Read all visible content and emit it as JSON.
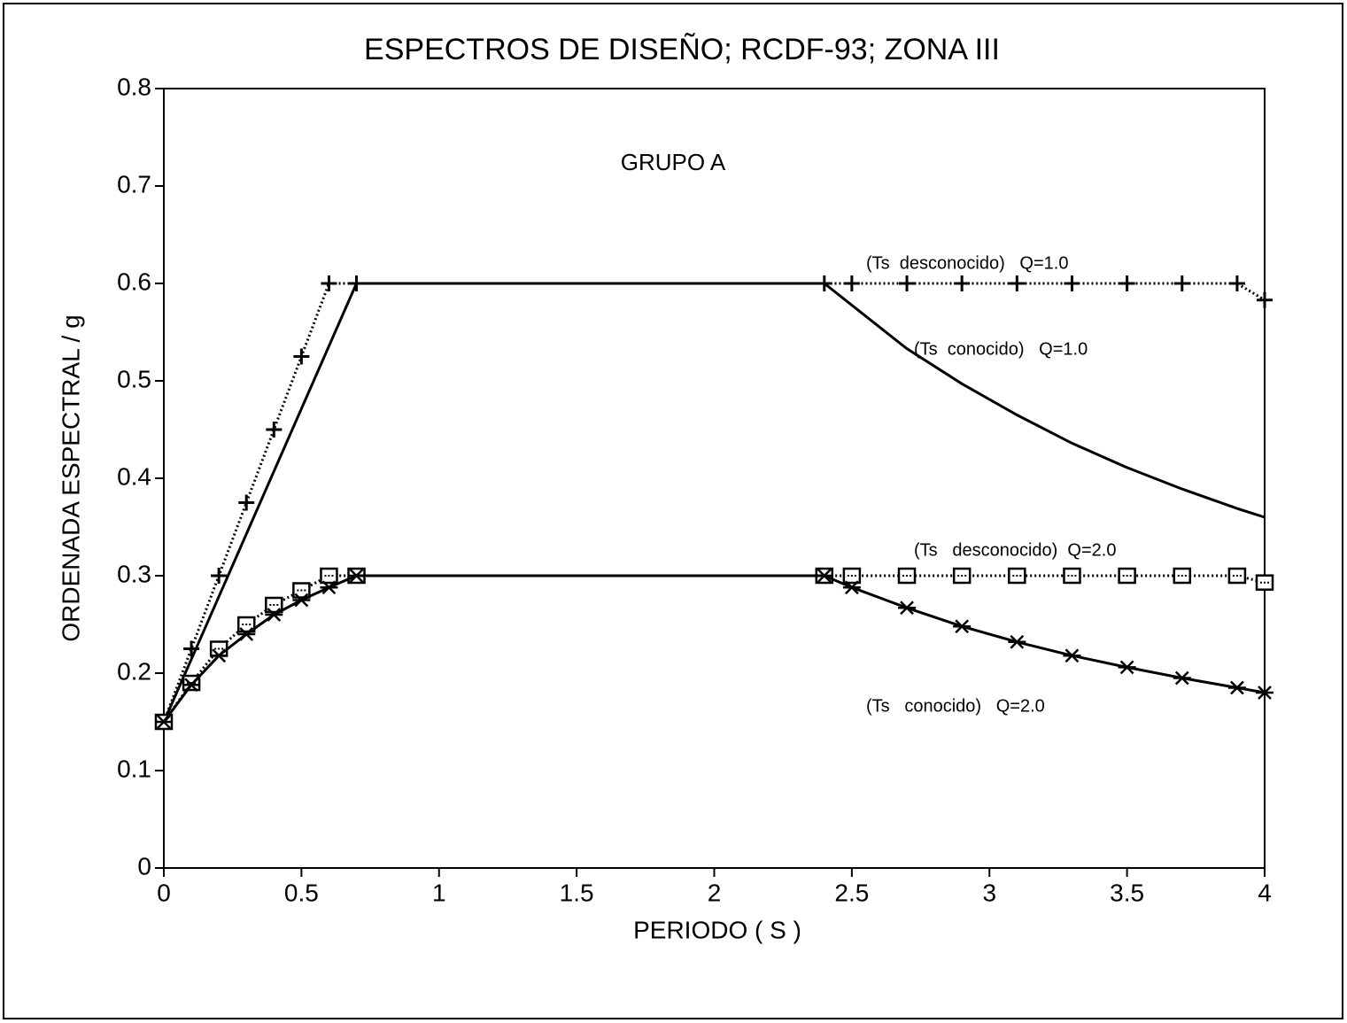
{
  "chart_data": {
    "type": "line",
    "title": "ESPECTROS DE DISEÑO; RCDF-93; ZONA III",
    "annotation": "GRUPO A",
    "x_label": "PERIODO ( S )",
    "y_label": "ORDENADA ESPECTRAL / g",
    "xlim": [
      0,
      4
    ],
    "ylim": [
      0,
      0.8
    ],
    "xticks": [
      0,
      0.5,
      1,
      1.5,
      2,
      2.5,
      3,
      3.5,
      4
    ],
    "yticks": [
      0,
      0.1,
      0.2,
      0.3,
      0.4,
      0.5,
      0.6,
      0.7,
      0.8
    ],
    "series": [
      {
        "name": "(Ts  desconocido)   Q=1.0",
        "color": "#000000",
        "line": "dotted",
        "marker": "plus",
        "x": [
          0,
          0.1,
          0.2,
          0.3,
          0.4,
          0.5,
          0.6,
          0.7,
          2.4,
          2.5,
          2.7,
          2.9,
          3.1,
          3.3,
          3.5,
          3.7,
          3.9,
          4.0
        ],
        "values": [
          0.15,
          0.225,
          0.3,
          0.375,
          0.45,
          0.525,
          0.6,
          0.6,
          0.6,
          0.6,
          0.6,
          0.6,
          0.6,
          0.6,
          0.6,
          0.6,
          0.6,
          0.583
        ]
      },
      {
        "name": "(Ts  conocido)   Q=1.0",
        "color": "#000000",
        "line": "solid",
        "marker": "none",
        "x": [
          0,
          0.7,
          2.4,
          2.7,
          2.9,
          3.1,
          3.3,
          3.5,
          3.7,
          3.9,
          4.0
        ],
        "values": [
          0.15,
          0.6,
          0.6,
          0.533,
          0.497,
          0.465,
          0.436,
          0.411,
          0.389,
          0.369,
          0.36
        ]
      },
      {
        "name": "(Ts   desconocido)  Q=2.0",
        "color": "#000000",
        "line": "dotted",
        "marker": "square",
        "x": [
          0,
          0.1,
          0.2,
          0.3,
          0.4,
          0.5,
          0.6,
          0.7,
          2.4,
          2.5,
          2.7,
          2.9,
          3.1,
          3.3,
          3.5,
          3.7,
          3.9,
          4.0
        ],
        "values": [
          0.15,
          0.19,
          0.225,
          0.25,
          0.27,
          0.285,
          0.3,
          0.3,
          0.3,
          0.3,
          0.3,
          0.3,
          0.3,
          0.3,
          0.3,
          0.3,
          0.3,
          0.293
        ]
      },
      {
        "name": "(Ts   conocido)   Q=2.0",
        "color": "#000000",
        "line": "solid",
        "marker": "asterisk",
        "x": [
          0,
          0.1,
          0.2,
          0.3,
          0.4,
          0.5,
          0.6,
          0.7,
          2.4,
          2.5,
          2.7,
          2.9,
          3.1,
          3.3,
          3.5,
          3.7,
          3.9,
          4.0
        ],
        "values": [
          0.15,
          0.188,
          0.218,
          0.24,
          0.26,
          0.275,
          0.288,
          0.3,
          0.3,
          0.288,
          0.267,
          0.248,
          0.232,
          0.218,
          0.206,
          0.195,
          0.185,
          0.18
        ]
      }
    ]
  }
}
